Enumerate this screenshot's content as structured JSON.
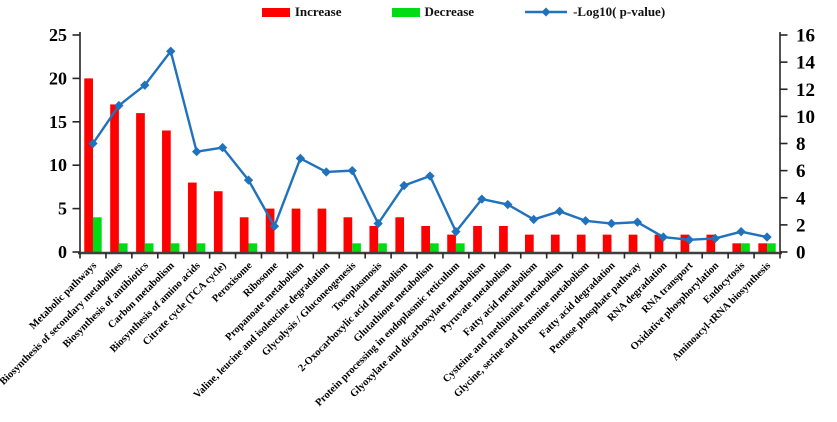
{
  "figure": {
    "background": "#ffffff"
  },
  "colors": {
    "increase": "#fe0000",
    "decrease": "#00dc14",
    "pvalue_line": "#2172bd",
    "axis": "#262626",
    "x_axis_line": "#3f3f3f",
    "text": "#000000"
  },
  "legend": {
    "position": "top",
    "items": [
      {
        "label": "Increase",
        "swatch": "bar",
        "color": "#fe0000"
      },
      {
        "label": "Decrease",
        "swatch": "bar",
        "color": "#00dc14"
      },
      {
        "label": "-Log10( p-value)",
        "swatch": "line-diamond",
        "color": "#2172bd"
      }
    ]
  },
  "chart_data": {
    "type": "bar",
    "subtype": "combo-bar-line-dual-axis",
    "title": "",
    "xlabel": "",
    "ylabel_left": "",
    "ylabel_right": "",
    "grid": false,
    "legend_position": "top-center",
    "categories": [
      "Metabolic pathways",
      "Biosynthesis of secondary metabolites",
      "Biosynthesis of antibiotics",
      "Carbon metabolism",
      "Biosynthesis of amino acids",
      "Citrate cycle (TCA cycle)",
      "Peroxisome",
      "Ribosome",
      "Propanoate metabolism",
      "Valine, leucine and isoleucine degradation",
      "Glycolysis / Gluconeogenesis",
      "Toxoplasmosis",
      "2-Oxocarboxylic acid metabolism",
      "Glutathione metabolism",
      "Protein processing in endoplasmic reticulum",
      "Glyoxylate and dicarboxylate metabolism",
      "Pyruvate metabolism",
      "Fatty acid metabolism",
      "Cysteine and methionine metabolism",
      "Glycine, serine and threonine metabolism",
      "Fatty acid degradation",
      "Pentose phosphate pathway",
      "RNA degradation",
      "RNA transport",
      "Oxidative phosphorylation",
      "Endocytosis",
      "Aminoacyl-tRNA biosynthesis"
    ],
    "series": [
      {
        "name": "Increase",
        "render": "bar",
        "axis": "left",
        "color": "#fe0000",
        "values": [
          20,
          17,
          16,
          14,
          8,
          7,
          4,
          5,
          5,
          5,
          4,
          3,
          4,
          3,
          2,
          3,
          3,
          2,
          2,
          2,
          2,
          2,
          2,
          2,
          2,
          1,
          1
        ]
      },
      {
        "name": "Decrease",
        "render": "bar",
        "axis": "left",
        "color": "#00dc14",
        "values": [
          4,
          1,
          1,
          1,
          1,
          0,
          1,
          0,
          0,
          0,
          1,
          1,
          0,
          1,
          1,
          0,
          0,
          0,
          0,
          0,
          0,
          0,
          0,
          0,
          0,
          1,
          1
        ]
      },
      {
        "name": "-Log10( p-value)",
        "render": "line",
        "marker": "diamond",
        "axis": "right",
        "color": "#2172bd",
        "values": [
          8.0,
          10.8,
          12.3,
          14.8,
          7.4,
          7.7,
          5.3,
          1.9,
          6.9,
          5.9,
          6.0,
          2.1,
          4.9,
          5.6,
          1.5,
          3.9,
          3.5,
          2.4,
          3.0,
          2.3,
          2.1,
          2.2,
          1.1,
          0.9,
          1.0,
          1.5,
          1.1
        ]
      }
    ],
    "left_axis": {
      "min": 0,
      "max": 25,
      "ticks": [
        0,
        5,
        10,
        15,
        20,
        25
      ]
    },
    "right_axis": {
      "min": 0,
      "max": 16,
      "ticks": [
        0,
        2,
        4,
        6,
        8,
        10,
        12,
        14,
        16
      ]
    }
  }
}
